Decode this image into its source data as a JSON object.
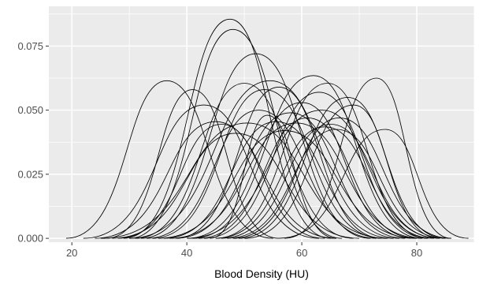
{
  "chart_data": {
    "type": "line",
    "title": "",
    "xlabel": "Blood Density (HU)",
    "ylabel": "",
    "xlim": [
      16,
      90
    ],
    "ylim": [
      -0.0015,
      0.0905
    ],
    "x_ticks": [
      20,
      40,
      60,
      80
    ],
    "x_tick_labels": [
      "20",
      "40",
      "60",
      "80"
    ],
    "x_minor_ticks": [
      30,
      50,
      70,
      90
    ],
    "y_ticks": [
      0.0,
      0.025,
      0.05,
      0.075
    ],
    "y_tick_labels": [
      "0.000",
      "0.025",
      "0.050",
      "0.075"
    ],
    "y_minor_ticks": [
      0.0125,
      0.0375,
      0.0625,
      0.0875
    ],
    "grid": true,
    "legend": "none",
    "colors": {
      "panel": "#ebebeb",
      "grid": "#ffffff",
      "line": "#000000",
      "tick_text": "#4d4d4d",
      "title_text": "#000000"
    },
    "series": [
      {
        "values": [
          [
            19,
            0
          ],
          [
            36.5,
            0.0615
          ],
          [
            55,
            0
          ]
        ]
      },
      {
        "values": [
          [
            26,
            0
          ],
          [
            41,
            0.058
          ],
          [
            56,
            0
          ]
        ]
      },
      {
        "values": [
          [
            22,
            0
          ],
          [
            43,
            0.052
          ],
          [
            63,
            0
          ]
        ]
      },
      {
        "values": [
          [
            24,
            0
          ],
          [
            45,
            0.0455
          ],
          [
            66,
            0
          ]
        ]
      },
      {
        "values": [
          [
            28,
            0
          ],
          [
            46,
            0.0445
          ],
          [
            64,
            0
          ]
        ]
      },
      {
        "values": [
          [
            29,
            0
          ],
          [
            47.5,
            0.0855
          ],
          [
            65,
            0
          ]
        ]
      },
      {
        "values": [
          [
            30,
            0
          ],
          [
            48,
            0.0815
          ],
          [
            67,
            0
          ]
        ]
      },
      {
        "values": [
          [
            27,
            0
          ],
          [
            48.5,
            0.041
          ],
          [
            70,
            0
          ]
        ]
      },
      {
        "values": [
          [
            31,
            0
          ],
          [
            50,
            0.0605
          ],
          [
            69,
            0
          ]
        ]
      },
      {
        "values": [
          [
            25,
            0
          ],
          [
            50.5,
            0.045
          ],
          [
            75,
            0
          ]
        ]
      },
      {
        "values": [
          [
            32,
            0
          ],
          [
            52,
            0.072
          ],
          [
            72,
            0
          ]
        ]
      },
      {
        "values": [
          [
            33,
            0
          ],
          [
            52.5,
            0.05
          ],
          [
            73,
            0
          ]
        ]
      },
      {
        "values": [
          [
            34,
            0
          ],
          [
            53.5,
            0.058
          ],
          [
            74,
            0
          ]
        ]
      },
      {
        "values": [
          [
            30,
            0
          ],
          [
            54.5,
            0.0615
          ],
          [
            77,
            0
          ]
        ]
      },
      {
        "values": [
          [
            44,
            0
          ],
          [
            54,
            0.048
          ],
          [
            66,
            0
          ]
        ]
      },
      {
        "values": [
          [
            36,
            0
          ],
          [
            55.5,
            0.0455
          ],
          [
            76,
            0
          ]
        ]
      },
      {
        "values": [
          [
            38,
            0
          ],
          [
            56,
            0.059
          ],
          [
            74,
            0
          ]
        ]
      },
      {
        "values": [
          [
            35,
            0
          ],
          [
            57,
            0.042
          ],
          [
            80,
            0
          ]
        ]
      },
      {
        "values": [
          [
            38,
            0
          ],
          [
            58,
            0.049
          ],
          [
            78,
            0
          ]
        ]
      },
      {
        "values": [
          [
            37,
            0
          ],
          [
            59,
            0.045
          ],
          [
            81,
            0
          ]
        ]
      },
      {
        "values": [
          [
            40,
            0
          ],
          [
            60,
            0.053
          ],
          [
            79,
            0
          ]
        ]
      },
      {
        "values": [
          [
            42,
            0
          ],
          [
            61,
            0.047
          ],
          [
            80,
            0
          ]
        ]
      },
      {
        "values": [
          [
            41,
            0
          ],
          [
            62,
            0.0635
          ],
          [
            81,
            0
          ]
        ]
      },
      {
        "values": [
          [
            43,
            0
          ],
          [
            63,
            0.057
          ],
          [
            82,
            0
          ]
        ]
      },
      {
        "values": [
          [
            40,
            0
          ],
          [
            63.5,
            0.05
          ],
          [
            84,
            0
          ]
        ]
      },
      {
        "values": [
          [
            45,
            0
          ],
          [
            64,
            0.0435
          ],
          [
            83,
            0
          ]
        ]
      },
      {
        "values": [
          [
            45,
            0
          ],
          [
            64.5,
            0.0605
          ],
          [
            82,
            0
          ]
        ]
      },
      {
        "values": [
          [
            46,
            0
          ],
          [
            65,
            0.0445
          ],
          [
            84,
            0
          ]
        ]
      },
      {
        "values": [
          [
            47,
            0
          ],
          [
            66,
            0.0425
          ],
          [
            85,
            0
          ]
        ]
      },
      {
        "values": [
          [
            48,
            0
          ],
          [
            66.5,
            0.047
          ],
          [
            86,
            0
          ]
        ]
      },
      {
        "values": [
          [
            49,
            0
          ],
          [
            68,
            0.055
          ],
          [
            85,
            0
          ]
        ]
      },
      {
        "values": [
          [
            50,
            0
          ],
          [
            69,
            0.052
          ],
          [
            84,
            0
          ]
        ]
      },
      {
        "values": [
          [
            57,
            0
          ],
          [
            73,
            0.0625
          ],
          [
            86,
            0
          ]
        ]
      },
      {
        "values": [
          [
            56,
            0
          ],
          [
            74.5,
            0.0425
          ],
          [
            89,
            0
          ]
        ]
      }
    ]
  }
}
